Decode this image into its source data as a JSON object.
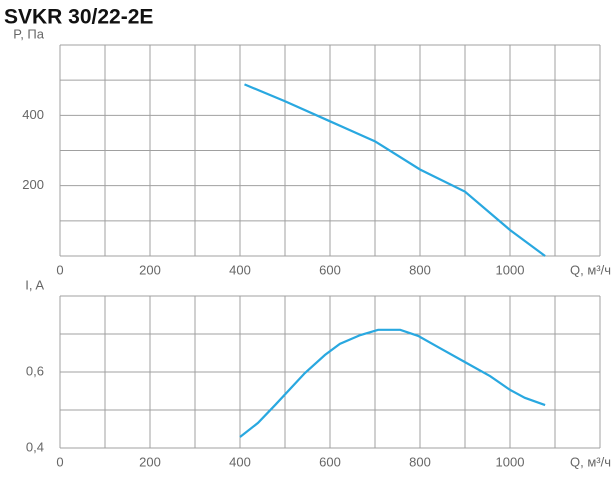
{
  "title": "SVKR 30/22-2E",
  "chart_data": [
    {
      "type": "line",
      "ylabel": "P, Па",
      "xlabel": "Q, м³/ч",
      "color": "#29a8e0",
      "x": [
        410,
        500,
        600,
        700,
        800,
        900,
        1000,
        1078
      ],
      "values": [
        488,
        440,
        383,
        326,
        246,
        183,
        74,
        0
      ],
      "xlim": [
        0,
        1200
      ],
      "ylim": [
        0,
        600
      ],
      "xticks": [
        0,
        200,
        400,
        600,
        800,
        1000
      ],
      "yticks": [
        200,
        400
      ],
      "xgrid": [
        0,
        100,
        200,
        300,
        400,
        500,
        600,
        700,
        800,
        900,
        1000,
        1100,
        1200
      ],
      "ygrid": [
        0,
        100,
        200,
        300,
        400,
        500,
        600
      ]
    },
    {
      "type": "line",
      "ylabel": "I, A",
      "xlabel": "Q, м³/ч",
      "color": "#29a8e0",
      "x": [
        400,
        440,
        478,
        544,
        589,
        622,
        667,
        707,
        756,
        796,
        844,
        900,
        956,
        1000,
        1033,
        1078
      ],
      "values": [
        0.429,
        0.466,
        0.513,
        0.597,
        0.645,
        0.674,
        0.697,
        0.711,
        0.711,
        0.695,
        0.663,
        0.626,
        0.589,
        0.553,
        0.532,
        0.513
      ],
      "xlim": [
        0,
        1200
      ],
      "ylim": [
        0.4,
        0.8
      ],
      "xticks": [
        0,
        200,
        400,
        600,
        800,
        1000
      ],
      "yticks": [
        {
          "value": 0.4,
          "label": "0,4"
        },
        {
          "value": 0.6,
          "label": "0,6"
        }
      ],
      "xgrid": [
        0,
        100,
        200,
        300,
        400,
        500,
        600,
        700,
        800,
        900,
        1000,
        1100,
        1200
      ],
      "ygrid": [
        0.4,
        0.5,
        0.6,
        0.7,
        0.8
      ]
    }
  ]
}
